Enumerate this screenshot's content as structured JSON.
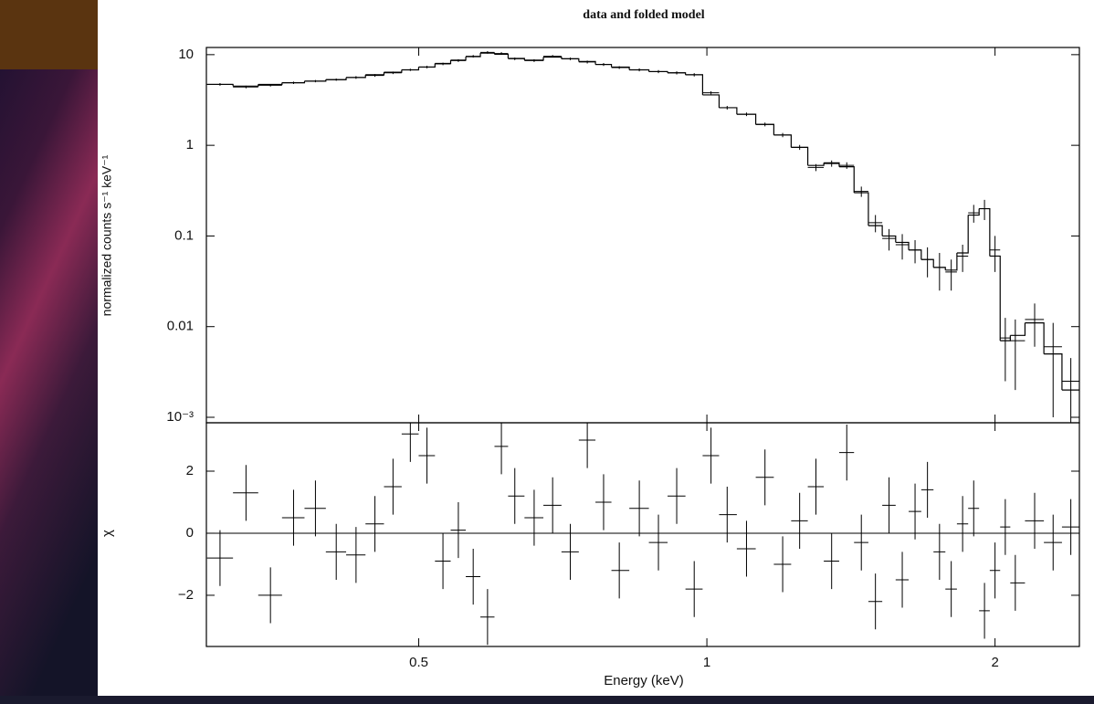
{
  "chart_data": [
    {
      "type": "spectrum",
      "title": "data and folded model",
      "ylabel": "normalized counts s⁻¹ keV⁻¹",
      "xlog": true,
      "ylog": true,
      "xlim": [
        0.3,
        2.45
      ],
      "ylim": [
        0.00087,
        12
      ],
      "yticks": [
        10,
        1,
        0.1,
        0.01,
        {
          "value": 0.001,
          "label": "10⁻³"
        }
      ],
      "x": [
        0.31,
        0.33,
        0.35,
        0.37,
        0.39,
        0.41,
        0.43,
        0.45,
        0.47,
        0.49,
        0.51,
        0.53,
        0.55,
        0.57,
        0.59,
        0.61,
        0.63,
        0.66,
        0.69,
        0.72,
        0.75,
        0.78,
        0.81,
        0.85,
        0.89,
        0.93,
        0.97,
        1.01,
        1.05,
        1.1,
        1.15,
        1.2,
        1.25,
        1.3,
        1.35,
        1.4,
        1.45,
        1.5,
        1.55,
        1.6,
        1.65,
        1.7,
        1.75,
        1.8,
        1.85,
        1.9,
        1.95,
        2.0,
        2.05,
        2.1,
        2.2,
        2.3,
        2.4
      ],
      "series": [
        {
          "color": "#000000",
          "values": [
            4.7,
            4.4,
            4.6,
            4.9,
            5.1,
            5.3,
            5.6,
            5.9,
            6.3,
            6.8,
            7.3,
            7.9,
            8.6,
            9.6,
            10.6,
            10.3,
            9.0,
            8.6,
            9.6,
            9.0,
            8.3,
            7.8,
            7.2,
            6.8,
            6.5,
            6.3,
            6.0,
            3.8,
            2.6,
            2.2,
            1.7,
            1.3,
            0.95,
            0.57,
            0.63,
            0.6,
            0.31,
            0.14,
            0.094,
            0.08,
            0.07,
            0.055,
            0.045,
            0.04,
            0.06,
            0.18,
            0.2,
            0.07,
            0.0075,
            0.007,
            0.012,
            0.006,
            0.0025
          ],
          "errors": [
            0.15,
            0.15,
            0.15,
            0.15,
            0.15,
            0.15,
            0.2,
            0.2,
            0.2,
            0.2,
            0.25,
            0.25,
            0.3,
            0.3,
            0.35,
            0.35,
            0.3,
            0.3,
            0.3,
            0.3,
            0.3,
            0.3,
            0.25,
            0.25,
            0.25,
            0.25,
            0.25,
            0.15,
            0.12,
            0.1,
            0.08,
            0.07,
            0.06,
            0.05,
            0.05,
            0.05,
            0.04,
            0.03,
            0.025,
            0.025,
            0.02,
            0.02,
            0.02,
            0.015,
            0.02,
            0.04,
            0.05,
            0.03,
            0.005,
            0.005,
            0.006,
            0.005,
            0.002
          ]
        },
        {
          "color": "#000000",
          "step": true,
          "values": [
            4.7,
            4.5,
            4.7,
            4.9,
            5.1,
            5.3,
            5.6,
            6.0,
            6.4,
            6.8,
            7.3,
            8.0,
            8.7,
            9.5,
            10.4,
            10.1,
            9.1,
            8.7,
            9.4,
            9.0,
            8.4,
            7.8,
            7.3,
            6.8,
            6.5,
            6.3,
            6.0,
            3.6,
            2.6,
            2.2,
            1.7,
            1.3,
            0.95,
            0.6,
            0.64,
            0.58,
            0.3,
            0.13,
            0.1,
            0.085,
            0.07,
            0.055,
            0.045,
            0.042,
            0.065,
            0.17,
            0.2,
            0.06,
            0.007,
            0.008,
            0.011,
            0.005,
            0.002
          ]
        }
      ]
    },
    {
      "type": "residuals",
      "ylabel": "χ",
      "xlabel": "Energy (keV)",
      "xlog": true,
      "xlim": [
        0.3,
        2.45
      ],
      "xticks": [
        0.5,
        1,
        2
      ],
      "ylim": [
        -3.65,
        3.56
      ],
      "yticks": [
        2,
        0,
        {
          "value": -2,
          "label": "−2"
        }
      ],
      "values": [
        -0.8,
        1.3,
        -2.0,
        0.5,
        0.8,
        -0.6,
        -0.7,
        0.3,
        1.5,
        3.2,
        2.5,
        -0.9,
        0.1,
        -1.4,
        -2.7,
        2.8,
        1.2,
        0.5,
        0.9,
        -0.6,
        3.0,
        1.0,
        -1.2,
        0.8,
        -0.3,
        1.2,
        -1.8,
        2.5,
        0.6,
        -0.5,
        1.8,
        -1.0,
        0.4,
        1.5,
        -0.9,
        2.6,
        -0.3,
        -2.2,
        0.9,
        -1.5,
        0.7,
        1.4,
        -0.6,
        -1.8,
        0.3,
        0.8,
        -2.5,
        -1.2,
        0.2,
        -1.6,
        0.4,
        -0.3,
        0.2
      ],
      "errors": [
        0.9,
        0.9,
        0.9,
        0.9,
        0.9,
        0.9,
        0.9,
        0.9,
        0.9,
        0.9,
        0.9,
        0.9,
        0.9,
        0.9,
        0.9,
        0.9,
        0.9,
        0.9,
        0.9,
        0.9,
        0.9,
        0.9,
        0.9,
        0.9,
        0.9,
        0.9,
        0.9,
        0.9,
        0.9,
        0.9,
        0.9,
        0.9,
        0.9,
        0.9,
        0.9,
        0.9,
        0.9,
        0.9,
        0.9,
        0.9,
        0.9,
        0.9,
        0.9,
        0.9,
        0.9,
        0.9,
        0.9,
        0.9,
        0.9,
        0.9,
        0.9,
        0.9,
        0.9
      ]
    }
  ]
}
